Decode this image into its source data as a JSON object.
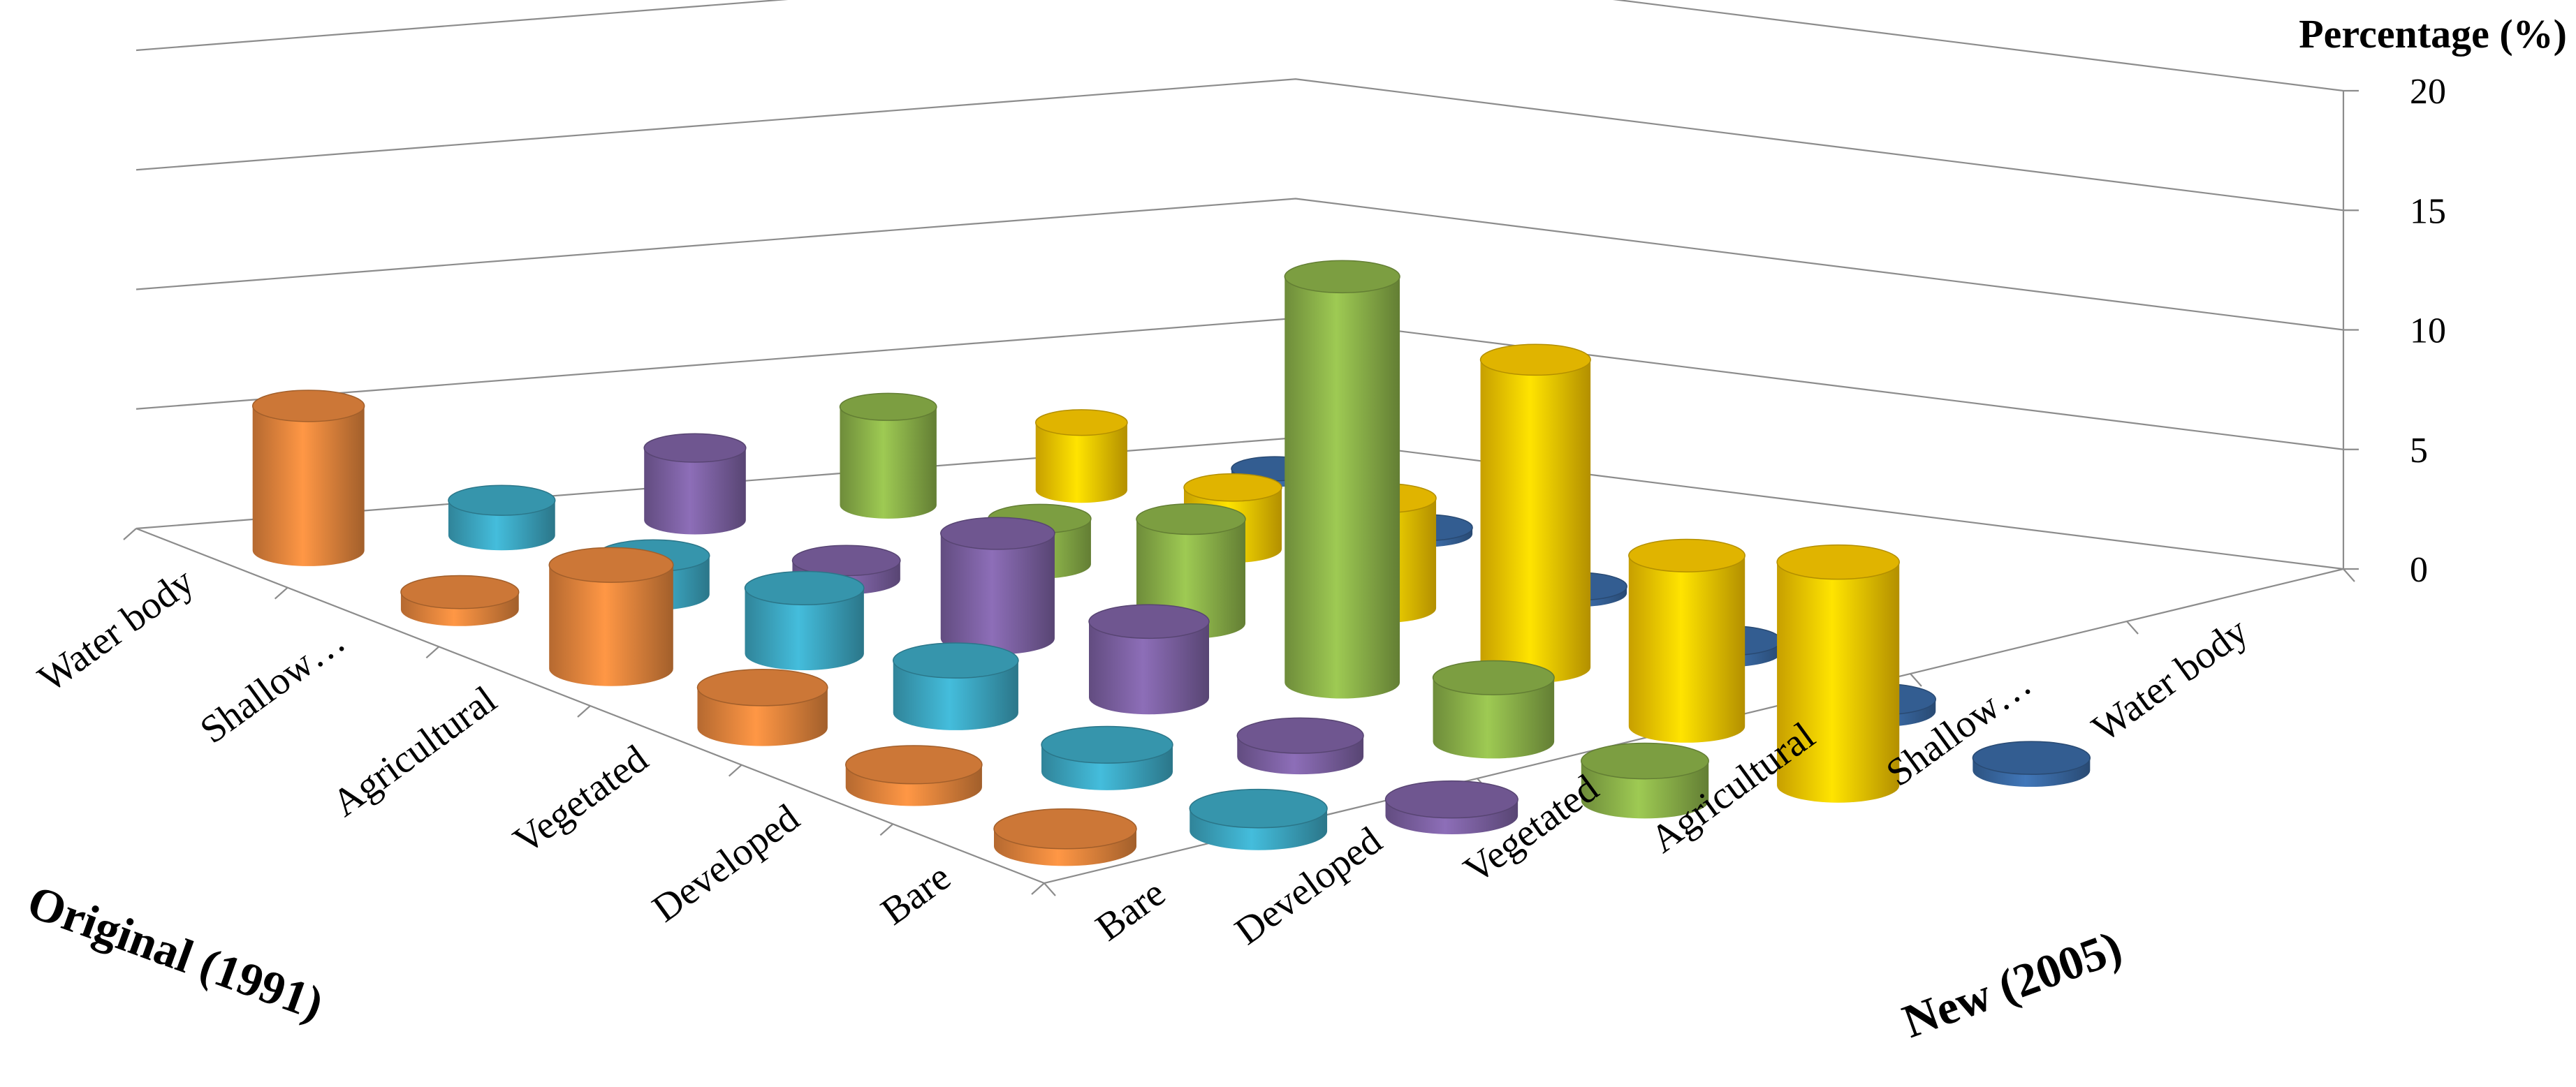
{
  "chart_data": {
    "type": "bar",
    "subtype": "3d-cylinder-matrix",
    "title": "",
    "x_axis_label": "Original (1991)",
    "y_axis_label": "New (2005)",
    "z_axis_label": "Percentage (%)",
    "zlim": [
      0,
      20
    ],
    "z_ticks": [
      "0",
      "5",
      "10",
      "15",
      "20"
    ],
    "original_categories": [
      "Water body",
      "Shallow…",
      "Agricultural",
      "Vegetated",
      "Developed",
      "Bare"
    ],
    "new_categories": [
      "Bare",
      "Developed",
      "Vegetated",
      "Agricultural",
      "Shallow…",
      "Water body"
    ],
    "series": [
      {
        "name": "Bare",
        "color": "#e8873e",
        "values": [
          6.0,
          0.7,
          4.0,
          1.5,
          0.8,
          0.6
        ]
      },
      {
        "name": "Developed",
        "color": "#3da9c4",
        "values": [
          1.5,
          1.6,
          2.6,
          2.0,
          1.0,
          0.8
        ]
      },
      {
        "name": "Vegetated",
        "color": "#7e62a4",
        "values": [
          3.2,
          0.8,
          4.3,
          3.0,
          0.8,
          0.6
        ]
      },
      {
        "name": "Agricultural",
        "color": "#8db44a",
        "values": [
          4.5,
          2.0,
          4.4,
          16.5,
          2.5,
          1.5
        ]
      },
      {
        "name": "Shallow…",
        "color": "#ffcc00",
        "values": [
          3.2,
          2.8,
          4.8,
          12.9,
          6.9,
          8.7
        ]
      },
      {
        "name": "Water body",
        "color": "#3a6aa5",
        "values": [
          0.3,
          0.3,
          0.3,
          0.5,
          0.5,
          0.5
        ]
      }
    ],
    "grid": true,
    "legend": "none"
  }
}
